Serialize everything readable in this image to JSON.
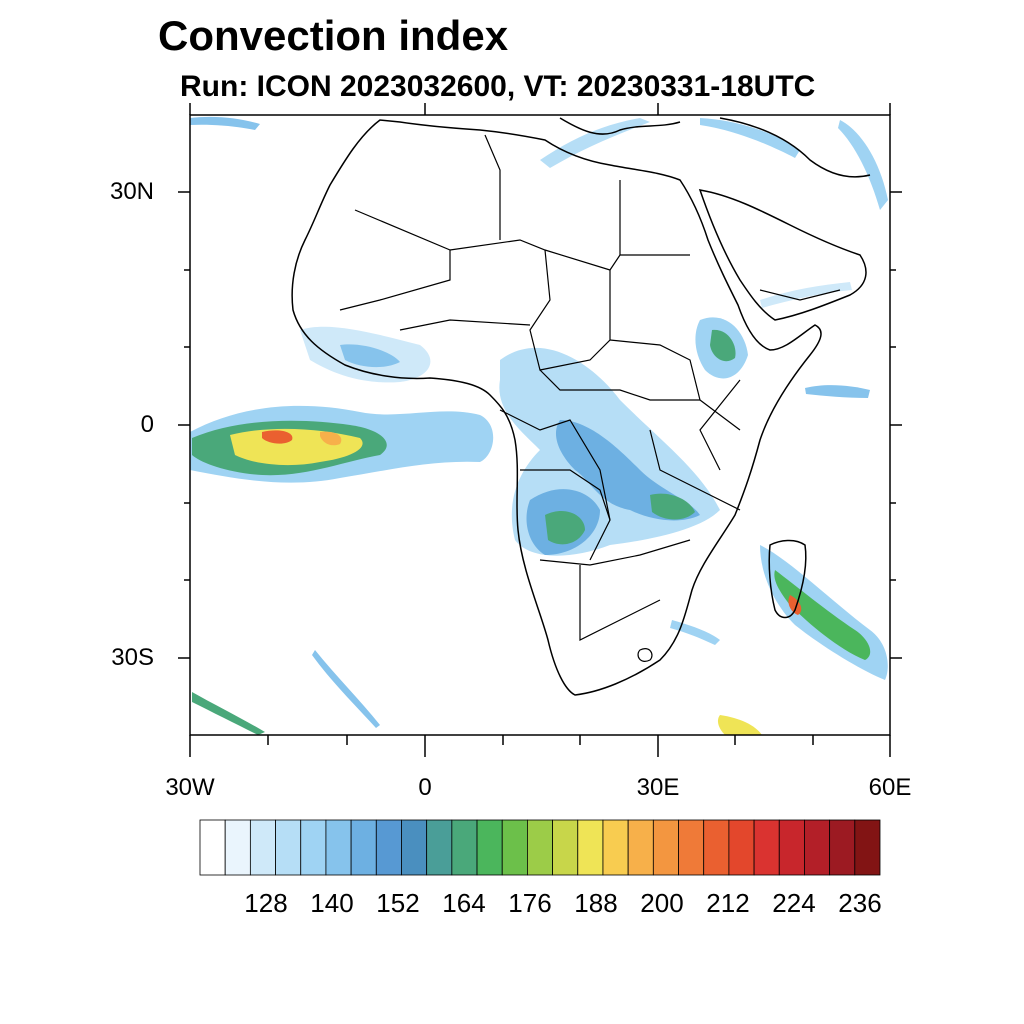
{
  "title": "Convection index",
  "subtitle": "Run: ICON 2023032600,  VT: 20230331-18UTC",
  "axes": {
    "y_ticks": [
      "30N",
      "0",
      "30S"
    ],
    "x_ticks": [
      "30W",
      "0",
      "30E",
      "60E"
    ]
  },
  "colorbar": {
    "labels": [
      "128",
      "140",
      "152",
      "164",
      "176",
      "188",
      "200",
      "212",
      "224",
      "236"
    ],
    "colors": [
      "#ffffff",
      "#eaf5fd",
      "#cfe9f9",
      "#b6def6",
      "#9fd3f3",
      "#86c3ec",
      "#6db0e2",
      "#5799d3",
      "#4a8fbf",
      "#4a9e98",
      "#4aa87a",
      "#4bb65c",
      "#6cc04a",
      "#9ccc48",
      "#c8d64a",
      "#efe456",
      "#f8cc50",
      "#f7b04a",
      "#f39640",
      "#ef7a38",
      "#ea6030",
      "#e3472c",
      "#da3330",
      "#c8262c",
      "#b31f28",
      "#9c1a22",
      "#821414"
    ]
  },
  "map_data": {
    "type": "filled-contour-map",
    "variable": "Convection index",
    "region": "Africa",
    "lon_range": [
      -30,
      60
    ],
    "lat_range": [
      -40,
      40
    ]
  }
}
